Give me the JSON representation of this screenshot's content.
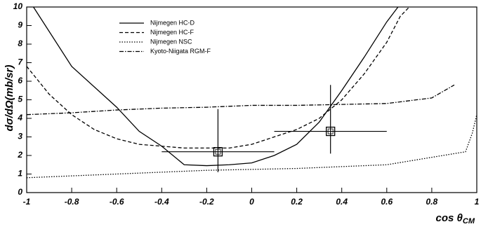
{
  "chart_data": {
    "type": "line",
    "ylabel": "dσ/dΩ(mb/sr)",
    "xlabel": "cos θ",
    "xlabel_sub": "CM",
    "xlim": [
      -1,
      1
    ],
    "xticks": [
      -1,
      -0.8,
      -0.6,
      -0.4,
      -0.2,
      0,
      0.2,
      0.4,
      0.6,
      0.8,
      1
    ],
    "ylim": [
      0,
      10
    ],
    "yticks": [
      0,
      1,
      2,
      3,
      4,
      5,
      6,
      7,
      8,
      9,
      10
    ],
    "legend": "upper left",
    "series": [
      {
        "name": "Nijmegen HC-D",
        "color": "#000000",
        "dash": "solid",
        "x": [
          -0.97,
          -0.8,
          -0.6,
          -0.5,
          -0.4,
          -0.3,
          -0.2,
          -0.1,
          0,
          0.1,
          0.2,
          0.3,
          0.4,
          0.5,
          0.6,
          0.65
        ],
        "values": [
          10,
          6.8,
          4.6,
          3.3,
          2.5,
          1.5,
          1.45,
          1.5,
          1.6,
          2,
          2.6,
          3.8,
          5.5,
          7.3,
          9.2,
          10
        ]
      },
      {
        "name": "Nijmegen HC-F",
        "color": "#000000",
        "dash": "dashed",
        "x": [
          -1,
          -0.9,
          -0.8,
          -0.7,
          -0.6,
          -0.5,
          -0.4,
          -0.3,
          -0.2,
          -0.1,
          0,
          0.1,
          0.2,
          0.3,
          0.4,
          0.5,
          0.6,
          0.66,
          0.7
        ],
        "values": [
          6.8,
          5.3,
          4.2,
          3.4,
          2.9,
          2.6,
          2.5,
          2.4,
          2.4,
          2.4,
          2.6,
          3.0,
          3.4,
          4.0,
          5.0,
          6.4,
          8.1,
          9.5,
          10
        ]
      },
      {
        "name": "Nijmegen NSC",
        "color": "#000000",
        "dash": "dotted",
        "x": [
          -1,
          -0.8,
          -0.6,
          -0.4,
          -0.2,
          0,
          0.2,
          0.4,
          0.6,
          0.8,
          0.9,
          0.95,
          0.98,
          1
        ],
        "values": [
          0.8,
          0.9,
          1.0,
          1.1,
          1.2,
          1.25,
          1.3,
          1.4,
          1.5,
          1.9,
          2.1,
          2.2,
          3.2,
          4.2
        ]
      },
      {
        "name": "Kyoto-Niigata RGM-F",
        "color": "#000000",
        "dash": "dashdot",
        "x": [
          -1,
          -0.8,
          -0.6,
          -0.4,
          -0.2,
          0,
          0.2,
          0.4,
          0.6,
          0.8,
          0.9
        ],
        "values": [
          4.2,
          4.3,
          4.45,
          4.55,
          4.6,
          4.7,
          4.7,
          4.75,
          4.8,
          5.1,
          5.8
        ]
      }
    ],
    "points": {
      "x": [
        -0.15,
        0.35
      ],
      "values": [
        2.2,
        3.3
      ],
      "x_err": [
        0.25,
        0.25
      ],
      "y_err_low": [
        1.1,
        1.2
      ],
      "y_err_high": [
        2.3,
        2.5
      ]
    }
  }
}
